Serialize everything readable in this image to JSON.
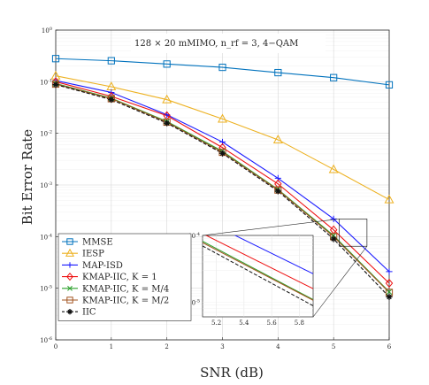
{
  "chart_data": {
    "type": "line",
    "title": "",
    "annotation": "128 × 20 mMIMO, n_rf = 3, 4−QAM",
    "xlabel": "SNR (dB)",
    "ylabel": "Bit Error Rate",
    "xlim": [
      0,
      6
    ],
    "ylim": [
      1e-06,
      1
    ],
    "yscale": "log",
    "grid": true,
    "legend_position": "bottom-left",
    "x": [
      0,
      1,
      2,
      3,
      4,
      5,
      6
    ],
    "series": [
      {
        "name": "MMSE",
        "color": "#0072BD",
        "marker": "square",
        "dashed": false,
        "values": [
          0.28,
          0.255,
          0.22,
          0.19,
          0.15,
          0.12,
          0.087
        ]
      },
      {
        "name": "IESP",
        "color": "#EDB120",
        "marker": "triangle",
        "dashed": false,
        "values": [
          0.13,
          0.08,
          0.045,
          0.019,
          0.0075,
          0.002,
          0.00052
        ]
      },
      {
        "name": "MAP-ISD",
        "color": "#1a1aff",
        "marker": "plus",
        "dashed": false,
        "values": [
          0.105,
          0.062,
          0.023,
          0.0068,
          0.00135,
          0.00022,
          2.1e-05
        ]
      },
      {
        "name": "KMAP-IIC, K = 1",
        "color": "#ee1111",
        "marker": "diamond",
        "dashed": false,
        "values": [
          0.1,
          0.052,
          0.022,
          0.0053,
          0.00105,
          0.000135,
          1.25e-05
        ]
      },
      {
        "name": "KMAP-IIC, K = M/4",
        "color": "#2ca02c",
        "marker": "x",
        "dashed": false,
        "values": [
          0.092,
          0.048,
          0.017,
          0.0045,
          0.00082,
          0.000105,
          8.5e-06
        ]
      },
      {
        "name": "KMAP-IIC, K = M/2",
        "color": "#A2531E",
        "marker": "square",
        "dashed": false,
        "values": [
          0.09,
          0.047,
          0.0165,
          0.0043,
          0.0008,
          0.0001,
          8.3e-06
        ]
      },
      {
        "name": "IIC",
        "color": "#111111",
        "marker": "star",
        "dashed": true,
        "values": [
          0.088,
          0.045,
          0.0158,
          0.0041,
          0.00076,
          9e-05,
          6.8e-06
        ]
      }
    ],
    "x_ticks": [
      "0",
      "1",
      "2",
      "3",
      "4",
      "5",
      "6"
    ],
    "inset": {
      "xlim": [
        5.1,
        5.9
      ],
      "ylim": [
        6e-06,
        0.0001
      ],
      "x_ticks": [
        "5.2",
        "5.4",
        "5.6",
        "5.8"
      ],
      "y_ticks": [
        "10",
        "10"
      ]
    }
  }
}
